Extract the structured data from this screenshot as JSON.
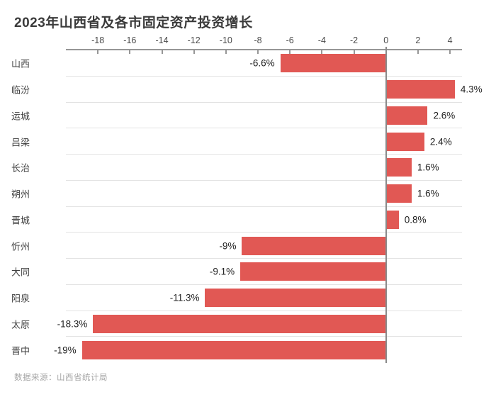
{
  "title": "2023年山西省及各市固定资产投资增长",
  "source_note": "数据来源：山西省统计局",
  "accent_color": "#e15854",
  "chart_data": {
    "type": "bar",
    "orientation": "horizontal",
    "title": "2023年山西省及各市固定资产投资增长",
    "categories": [
      "山西",
      "临汾",
      "运城",
      "吕梁",
      "长治",
      "朔州",
      "晋城",
      "忻州",
      "大同",
      "阳泉",
      "太原",
      "晋中"
    ],
    "values": [
      -6.6,
      4.3,
      2.6,
      2.4,
      1.6,
      1.6,
      0.8,
      -9,
      -9.1,
      -11.3,
      -18.3,
      -19
    ],
    "value_labels": [
      "-6.6%",
      "4.3%",
      "2.6%",
      "2.4%",
      "1.6%",
      "1.6%",
      "0.8%",
      "-9%",
      "-9.1%",
      "-11.3%",
      "-18.3%",
      "-19%"
    ],
    "unit": "%",
    "xlabel": "",
    "ylabel": "",
    "xlim": [
      -20,
      4.75
    ],
    "x_ticks": [
      -18,
      -16,
      -14,
      -12,
      -10,
      -8,
      -6,
      -4,
      -2,
      0,
      2,
      4
    ],
    "tick_position": "top",
    "grid": "row-separators",
    "legend": "none",
    "bar_color": "#e15854",
    "source": "数据来源：山西省统计局"
  }
}
